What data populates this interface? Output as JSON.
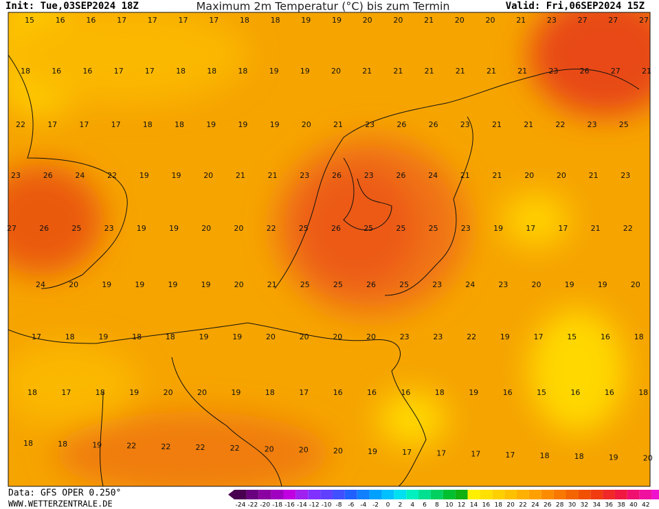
{
  "header": {
    "init": "Init: Tue,03SEP2024 18Z",
    "title": "Maximum 2m Temperatur (°C) bis zum Termin",
    "valid": "Valid: Fri,06SEP2024 15Z"
  },
  "map": {
    "rows": [
      [
        15,
        16,
        16,
        17,
        17,
        17,
        17,
        18,
        18,
        19,
        19,
        20,
        20,
        21,
        20,
        20,
        21,
        23,
        27,
        27,
        27
      ],
      [
        18,
        16,
        16,
        17,
        17,
        18,
        18,
        18,
        19,
        19,
        20,
        21,
        21,
        21,
        21,
        21,
        21,
        23,
        26,
        27,
        21
      ],
      [
        22,
        17,
        17,
        17,
        18,
        18,
        19,
        19,
        19,
        20,
        21,
        23,
        26,
        26,
        23,
        21,
        21,
        22,
        23,
        25
      ],
      [
        23,
        26,
        24,
        22,
        19,
        19,
        20,
        21,
        21,
        23,
        26,
        23,
        26,
        24,
        21,
        21,
        20,
        20,
        21,
        23
      ],
      [
        27,
        26,
        25,
        23,
        19,
        19,
        20,
        20,
        22,
        25,
        26,
        25,
        25,
        25,
        23,
        19,
        17,
        17,
        21,
        22
      ],
      [
        24,
        20,
        19,
        19,
        19,
        19,
        20,
        21,
        25,
        25,
        26,
        25,
        23,
        24,
        23,
        20,
        19,
        19,
        20
      ],
      [
        17,
        18,
        19,
        18,
        18,
        19,
        19,
        20,
        20,
        20,
        20,
        23,
        23,
        22,
        19,
        17,
        15,
        16,
        18
      ],
      [
        18,
        17,
        18,
        19,
        20,
        20,
        19,
        18,
        17,
        16,
        16,
        16,
        18,
        19,
        16,
        15,
        16,
        16,
        18
      ],
      [
        18,
        18,
        19,
        22,
        22,
        22,
        22,
        20,
        20,
        20,
        19,
        17,
        17,
        17,
        17,
        18,
        18,
        19,
        20
      ]
    ]
  },
  "footer": {
    "data": "Data: GFS OPER 0.250°",
    "site": "WWW.WETTERZENTRALE.DE"
  },
  "colorbar": {
    "labels": [
      -24,
      -22,
      -20,
      -18,
      -16,
      -14,
      -12,
      -10,
      -8,
      -6,
      -4,
      -2,
      0,
      2,
      4,
      6,
      8,
      10,
      12,
      14,
      16,
      18,
      20,
      22,
      24,
      26,
      28,
      30,
      32,
      34,
      36,
      38,
      40,
      42
    ]
  }
}
